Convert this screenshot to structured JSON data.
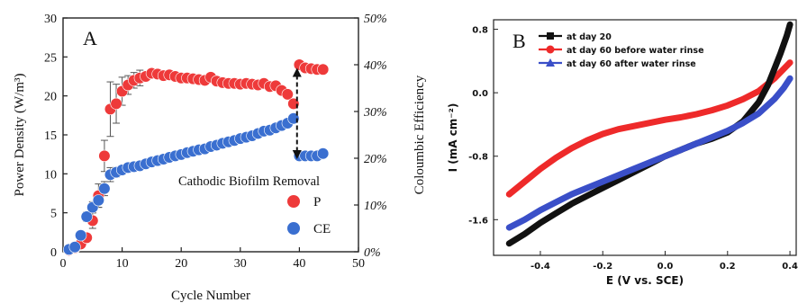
{
  "chart_data": [
    {
      "panel_label": "A",
      "type": "scatter",
      "xlabel": "Cycle Number",
      "ylabel_left": "Power Density (W/m³)",
      "ylabel_right": "Coloumbic Efficiency",
      "xlim": [
        0,
        50
      ],
      "ylim_left": [
        0,
        30
      ],
      "ylim_right": [
        0,
        50
      ],
      "x_ticks": [
        "0",
        "10",
        "20",
        "30",
        "40",
        "50"
      ],
      "y_ticks_left": [
        "0",
        "5",
        "10",
        "15",
        "20",
        "25",
        "30"
      ],
      "y_ticks_right": [
        "0%",
        "10%",
        "20%",
        "30%",
        "40%",
        "50%"
      ],
      "annotation": "Cathodic Biofilm Removal",
      "legend_position": "right",
      "series": [
        {
          "name": "P",
          "axis": "left",
          "color": "#ee3a3a",
          "x": [
            1,
            2,
            3,
            4,
            5,
            6,
            7,
            8,
            9,
            10,
            11,
            12,
            13,
            14,
            15,
            16,
            17,
            18,
            19,
            20,
            21,
            22,
            23,
            24,
            25,
            26,
            27,
            28,
            29,
            30,
            31,
            32,
            33,
            34,
            35,
            36,
            37,
            38,
            39,
            40,
            41,
            42,
            43,
            44
          ],
          "y": [
            0.2,
            0.5,
            1.0,
            1.8,
            4.0,
            7.2,
            12.3,
            18.3,
            19.0,
            20.6,
            21.4,
            22.0,
            22.3,
            22.5,
            22.9,
            22.8,
            22.6,
            22.7,
            22.5,
            22.3,
            22.3,
            22.2,
            22.1,
            22.0,
            22.4,
            21.9,
            21.7,
            21.6,
            21.6,
            21.5,
            21.6,
            21.5,
            21.4,
            21.6,
            21.2,
            21.3,
            20.7,
            20.2,
            19.0,
            24.0,
            23.6,
            23.5,
            23.4,
            23.4
          ],
          "error": [
            0,
            0,
            0,
            0,
            1.0,
            1.5,
            2.0,
            3.5,
            2.5,
            1.8,
            1.2,
            1.0,
            1.0,
            0.5,
            0.5,
            0.4,
            0,
            0,
            0,
            0,
            0,
            0,
            0,
            0,
            0,
            0,
            0,
            0,
            0,
            0,
            0,
            0,
            0,
            0,
            0,
            0,
            0,
            0,
            0,
            0,
            0,
            0,
            0,
            0
          ]
        },
        {
          "name": "CE",
          "axis": "right",
          "color": "#3a6fd0",
          "x": [
            1,
            2,
            3,
            4,
            5,
            6,
            7,
            8,
            9,
            10,
            11,
            12,
            13,
            14,
            15,
            16,
            17,
            18,
            19,
            20,
            21,
            22,
            23,
            24,
            25,
            26,
            27,
            28,
            29,
            30,
            31,
            32,
            33,
            34,
            35,
            36,
            37,
            38,
            39,
            40,
            41,
            42,
            43,
            44
          ],
          "y": [
            0.5,
            1.0,
            3.5,
            7.5,
            9.5,
            11.0,
            13.5,
            16.5,
            17.0,
            17.5,
            18.0,
            18.2,
            18.4,
            18.8,
            19.2,
            19.5,
            19.8,
            20.2,
            20.5,
            20.8,
            21.2,
            21.5,
            21.8,
            22.0,
            22.5,
            22.8,
            23.2,
            23.5,
            23.8,
            24.2,
            24.5,
            24.8,
            25.3,
            25.8,
            26.0,
            26.5,
            27.0,
            27.5,
            28.5,
            20.5,
            20.5,
            20.5,
            20.5,
            21.0
          ],
          "error": [
            0,
            0,
            0,
            1.0,
            1.2,
            1.5,
            1.5,
            1.5,
            1.0,
            0.8,
            0.5,
            0.5,
            0,
            0,
            0,
            0,
            0,
            0,
            0,
            0,
            0,
            0,
            0,
            0,
            0,
            0,
            0,
            0,
            0,
            0,
            0,
            0,
            0,
            0,
            0,
            0,
            0,
            0,
            0,
            0,
            0,
            0,
            0,
            0
          ]
        }
      ]
    },
    {
      "panel_label": "B",
      "type": "line",
      "xlabel": "E (V vs. SCE)",
      "ylabel": "I (mA cm⁻²)",
      "xlim": [
        -0.55,
        0.42
      ],
      "ylim": [
        -2.05,
        0.92
      ],
      "x_ticks": [
        "-0.4",
        "-0.2",
        "0.0",
        "0.2",
        "0.4"
      ],
      "y_ticks": [
        "-1.6",
        "-0.8",
        "0.0",
        "0.8"
      ],
      "legend_position": "top-left",
      "series": [
        {
          "name": "at day 20",
          "color": "#111111",
          "marker": "square",
          "x": [
            -0.5,
            -0.45,
            -0.4,
            -0.35,
            -0.3,
            -0.25,
            -0.2,
            -0.15,
            -0.1,
            -0.05,
            0.0,
            0.05,
            0.1,
            0.15,
            0.2,
            0.25,
            0.3,
            0.33,
            0.35,
            0.37,
            0.39,
            0.4
          ],
          "y": [
            -1.9,
            -1.78,
            -1.64,
            -1.52,
            -1.4,
            -1.3,
            -1.2,
            -1.1,
            -1.0,
            -0.9,
            -0.8,
            -0.72,
            -0.64,
            -0.58,
            -0.5,
            -0.36,
            -0.12,
            0.1,
            0.3,
            0.5,
            0.72,
            0.86
          ]
        },
        {
          "name": "at day 60 before water rinse",
          "color": "#ee2a2a",
          "marker": "circle",
          "x": [
            -0.5,
            -0.45,
            -0.4,
            -0.35,
            -0.3,
            -0.25,
            -0.2,
            -0.15,
            -0.1,
            -0.05,
            0.0,
            0.05,
            0.1,
            0.15,
            0.2,
            0.25,
            0.3,
            0.35,
            0.4
          ],
          "y": [
            -1.28,
            -1.12,
            -0.96,
            -0.82,
            -0.7,
            -0.6,
            -0.52,
            -0.46,
            -0.42,
            -0.38,
            -0.34,
            -0.31,
            -0.27,
            -0.22,
            -0.16,
            -0.08,
            0.02,
            0.18,
            0.38
          ]
        },
        {
          "name": "at day 60 after water rinse",
          "color": "#3a4fc8",
          "marker": "triangle",
          "x": [
            -0.5,
            -0.45,
            -0.4,
            -0.35,
            -0.3,
            -0.25,
            -0.2,
            -0.15,
            -0.1,
            -0.05,
            0.0,
            0.05,
            0.1,
            0.15,
            0.2,
            0.25,
            0.3,
            0.35,
            0.38,
            0.4
          ],
          "y": [
            -1.7,
            -1.6,
            -1.48,
            -1.38,
            -1.28,
            -1.2,
            -1.12,
            -1.04,
            -0.96,
            -0.88,
            -0.8,
            -0.72,
            -0.64,
            -0.56,
            -0.48,
            -0.38,
            -0.26,
            -0.08,
            0.06,
            0.18
          ]
        }
      ]
    }
  ]
}
